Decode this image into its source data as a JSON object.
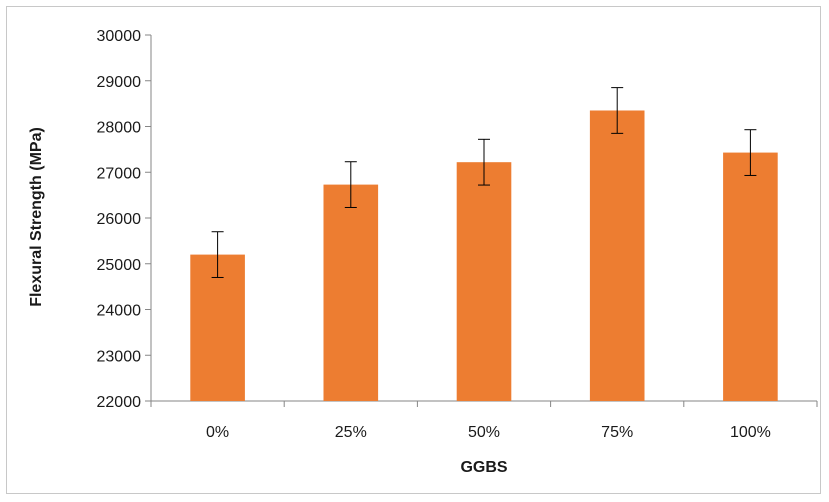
{
  "chart_data": {
    "type": "bar",
    "title": "",
    "xlabel": "GGBS",
    "ylabel": "Flexural Strength (MPa)",
    "categories": [
      "0%",
      "25%",
      "50%",
      "75%",
      "100%"
    ],
    "series": [
      {
        "values": [
          25200,
          26730,
          27220,
          28350,
          27430
        ],
        "error": [
          500,
          500,
          500,
          500,
          500
        ],
        "color": "#ED7D31"
      }
    ],
    "ylim": [
      22000,
      30000
    ],
    "yticks": [
      22000,
      23000,
      24000,
      25000,
      26000,
      27000,
      28000,
      29000,
      30000
    ],
    "grid": false,
    "legend": "none"
  }
}
